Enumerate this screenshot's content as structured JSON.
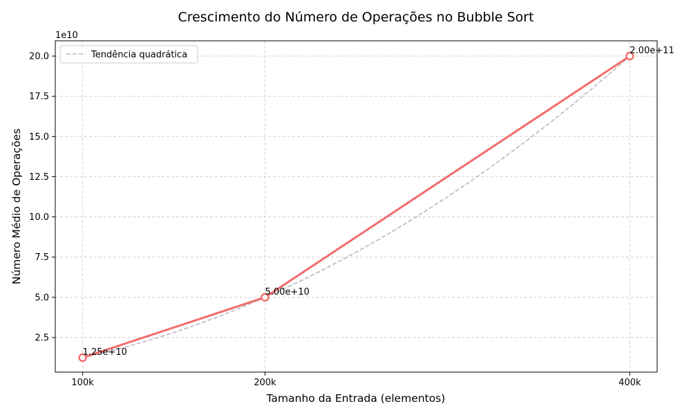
{
  "chart_data": {
    "type": "line",
    "title": "Crescimento do Número de Operações no Bubble Sort",
    "xlabel": "Tamanho da Entrada (elementos)",
    "ylabel": "Número Médio de Operações",
    "y_offset_label": "1e10",
    "x_scale": "linear",
    "x_ticks": [
      {
        "value": 100000,
        "label": "100k"
      },
      {
        "value": 200000,
        "label": "200k"
      },
      {
        "value": 400000,
        "label": "400k"
      }
    ],
    "xlim": [
      85000,
      415000
    ],
    "ylim": [
      0.35,
      20.95
    ],
    "y_ticks": [
      2.5,
      5.0,
      7.5,
      10.0,
      12.5,
      15.0,
      17.5,
      20.0
    ],
    "y_tick_labels": [
      "2.5",
      "5.0",
      "7.5",
      "10.0",
      "12.5",
      "15.0",
      "17.5",
      "20.0"
    ],
    "grid": true,
    "legend_position": "top-left",
    "series": [
      {
        "style": "solid-with-markers",
        "color": "#f36b6b",
        "x": [
          100000,
          200000,
          400000
        ],
        "y": [
          1.25,
          5.0,
          20.0
        ],
        "labels": [
          "1.25e+10",
          "5.00e+10",
          "2.00e+11"
        ]
      },
      {
        "name": "Tendência quadrática",
        "style": "dashed",
        "color": "#bbb5bc",
        "trend": "quadratic",
        "x_range": [
          100000,
          400000
        ],
        "y_at_max": 20.0
      }
    ]
  }
}
